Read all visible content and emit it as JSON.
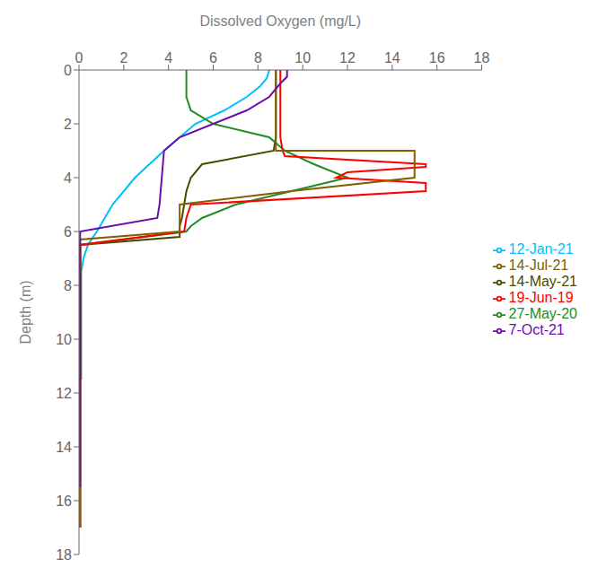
{
  "chart_data": {
    "type": "line",
    "xlabel": "Dissolved Oxygen (mg/L)",
    "ylabel": "Depth (m)",
    "xlim": [
      0,
      18
    ],
    "ylim": [
      18,
      0
    ],
    "xticks": [
      0,
      2,
      4,
      6,
      8,
      10,
      12,
      14,
      16,
      18
    ],
    "yticks": [
      0,
      2,
      4,
      6,
      8,
      10,
      12,
      14,
      16,
      18
    ],
    "grid": false,
    "legend": "right",
    "series": [
      {
        "name": "12-Jan-21",
        "color": "#00BFFF",
        "x": [
          8.5,
          8.4,
          8.1,
          7.5,
          6.5,
          5.2,
          3.8,
          2.5,
          1.5,
          0.8,
          0.4,
          0.2,
          0.1,
          0.1,
          0.1,
          0.1,
          0.1
        ],
        "values": [
          0,
          0.3,
          0.6,
          1.0,
          1.5,
          2.0,
          3.0,
          4.0,
          5.0,
          6.0,
          6.5,
          7.0,
          7.5,
          8.0,
          9.0,
          10.0,
          11.5
        ]
      },
      {
        "name": "14-May-21",
        "color": "#4B4B00",
        "x": [
          8.8,
          8.8,
          8.8,
          8.8,
          8.8,
          8.8,
          8.7,
          5.5,
          5.0,
          4.8,
          4.7,
          4.6,
          4.5,
          4.5,
          4.5,
          0.05,
          0.05
        ],
        "values": [
          0,
          0.5,
          1.0,
          1.5,
          2.0,
          2.5,
          3.0,
          3.5,
          4.0,
          4.5,
          5.0,
          5.5,
          5.8,
          6.0,
          6.2,
          6.5,
          17.0
        ]
      },
      {
        "name": "27-May-20",
        "color": "#228B22",
        "x": [
          4.8,
          4.8,
          4.8,
          5.0,
          6.0,
          8.5,
          9.2,
          10.5,
          12.0,
          9.5,
          7.0,
          5.5,
          5.0,
          4.8,
          0.05,
          0.05
        ],
        "values": [
          0,
          0.5,
          1.0,
          1.5,
          2.0,
          2.5,
          3.0,
          3.5,
          4.0,
          4.5,
          5.0,
          5.5,
          5.8,
          6.0,
          6.5,
          17.0
        ]
      },
      {
        "name": "19-Jun-19",
        "color": "#FF0000",
        "x": [
          9.0,
          9.0,
          9.0,
          9.0,
          9.0,
          9.0,
          9.0,
          9.0,
          9.1,
          9.2,
          15.5,
          15.5,
          12.0,
          11.5,
          15.5,
          15.5,
          5.0,
          4.8,
          4.7,
          0.05,
          0.05
        ],
        "values": [
          0,
          0.25,
          0.5,
          0.75,
          1.0,
          1.5,
          2.0,
          2.5,
          3.0,
          3.2,
          3.5,
          3.6,
          3.8,
          4.0,
          4.2,
          4.5,
          5.0,
          5.5,
          6.0,
          6.5,
          17.0
        ]
      },
      {
        "name": "14-Jul-21",
        "color": "#806000",
        "x": [
          8.8,
          8.8,
          8.8,
          8.8,
          8.8,
          8.8,
          8.8,
          8.8,
          15.0,
          15.0,
          15.0,
          15.0,
          9.5,
          4.5,
          4.5,
          4.5,
          0.05,
          0.05
        ],
        "values": [
          0,
          0.5,
          1.0,
          1.5,
          2.0,
          2.5,
          2.8,
          3.0,
          3.0,
          3.2,
          3.5,
          4.0,
          4.5,
          5.0,
          5.5,
          6.0,
          6.3,
          17.0
        ]
      },
      {
        "name": "7-Oct-21",
        "color": "#6A0DAD",
        "x": [
          9.3,
          9.3,
          9.0,
          8.5,
          7.5,
          6.0,
          4.5,
          3.8,
          3.7,
          3.6,
          3.5,
          0.05,
          0.05
        ],
        "values": [
          0,
          0.25,
          0.5,
          1.0,
          1.5,
          2.0,
          2.5,
          3.0,
          4.0,
          5.0,
          5.5,
          6.0,
          15.5
        ]
      }
    ]
  }
}
